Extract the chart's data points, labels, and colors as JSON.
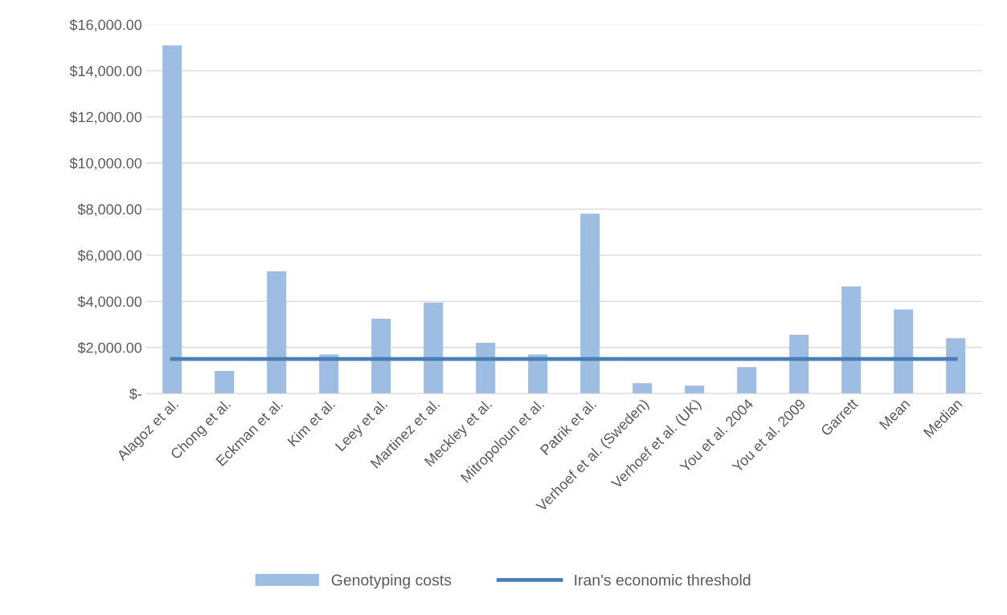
{
  "chart_data": {
    "type": "bar",
    "categories": [
      "Alagoz et al.",
      "Chong et al.",
      "Eckman et al.",
      "Kim et al.",
      "Leey et al.",
      "Martinez et al.",
      "Meckley et al.",
      "Mitropoloun et al.",
      "Patrik et al.",
      "Verhoef et al. (Sweden)",
      "Verhoef et al. (UK)",
      "You et al. 2004",
      "You et al. 2009",
      "Garrett",
      "Mean",
      "Median"
    ],
    "series": [
      {
        "name": "Genotyping costs",
        "color": "#9dbde3",
        "values": [
          15100,
          980,
          5300,
          1700,
          3250,
          3950,
          2200,
          1700,
          7800,
          450,
          350,
          1150,
          2550,
          4650,
          3650,
          2400
        ]
      },
      {
        "name": "Iran's economic threshold",
        "type": "line",
        "color": "#4a7fb5",
        "values": [
          1500,
          1500,
          1500,
          1500,
          1500,
          1500,
          1500,
          1500,
          1500,
          1500,
          1500,
          1500,
          1500,
          1500,
          1500,
          1500
        ]
      }
    ],
    "ylim": [
      0,
      16000
    ],
    "yticks": [
      {
        "value": 0,
        "label": "$-"
      },
      {
        "value": 2000,
        "label": "$2,000.00"
      },
      {
        "value": 4000,
        "label": "$4,000.00"
      },
      {
        "value": 6000,
        "label": "$6,000.00"
      },
      {
        "value": 8000,
        "label": "$8,000.00"
      },
      {
        "value": 10000,
        "label": "$10,000.00"
      },
      {
        "value": 12000,
        "label": "$12,000.00"
      },
      {
        "value": 14000,
        "label": "$14,000.00"
      },
      {
        "value": 16000,
        "label": "$16,000.00"
      }
    ],
    "grid": "y",
    "legend": "bottom",
    "marker": "none",
    "line_style": "solid"
  }
}
